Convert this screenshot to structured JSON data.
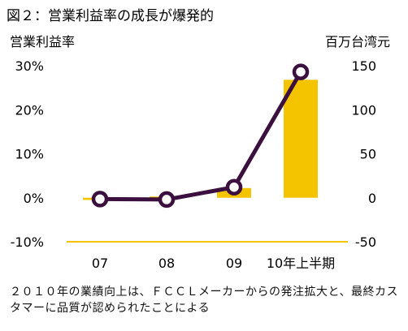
{
  "chart_data": {
    "type": "bar+line",
    "title": "図２：営業利益率の成長が爆発的",
    "categories": [
      "07",
      "08",
      "09",
      "10年上半期"
    ],
    "left_axis": {
      "label": "営業利益率",
      "ylim": [
        -10,
        30
      ],
      "ticks": [
        "30%",
        "20%",
        "10%",
        "0%",
        "-10%"
      ],
      "tick_values": [
        30,
        20,
        10,
        0,
        -10
      ]
    },
    "right_axis": {
      "label": "百万台湾元",
      "ylim": [
        -50,
        150
      ],
      "ticks": [
        "150",
        "100",
        "50",
        "0",
        "-50"
      ],
      "tick_values": [
        150,
        100,
        50,
        0,
        -50
      ]
    },
    "series": [
      {
        "kind": "bar",
        "axis": "left",
        "values": [
          -0.5,
          0,
          2.2,
          26.8
        ],
        "color": "#F5C400"
      },
      {
        "kind": "line",
        "axis": "right",
        "values": [
          -1.5,
          -2,
          12,
          143
        ],
        "color": "#3B0F3E"
      }
    ],
    "grid": false,
    "legend": "none"
  },
  "note": "２０１０年の業績向上は、ＦＣＣＬメーカーからの発注拡大と、最終カスタマーに品質が認められたことによる"
}
